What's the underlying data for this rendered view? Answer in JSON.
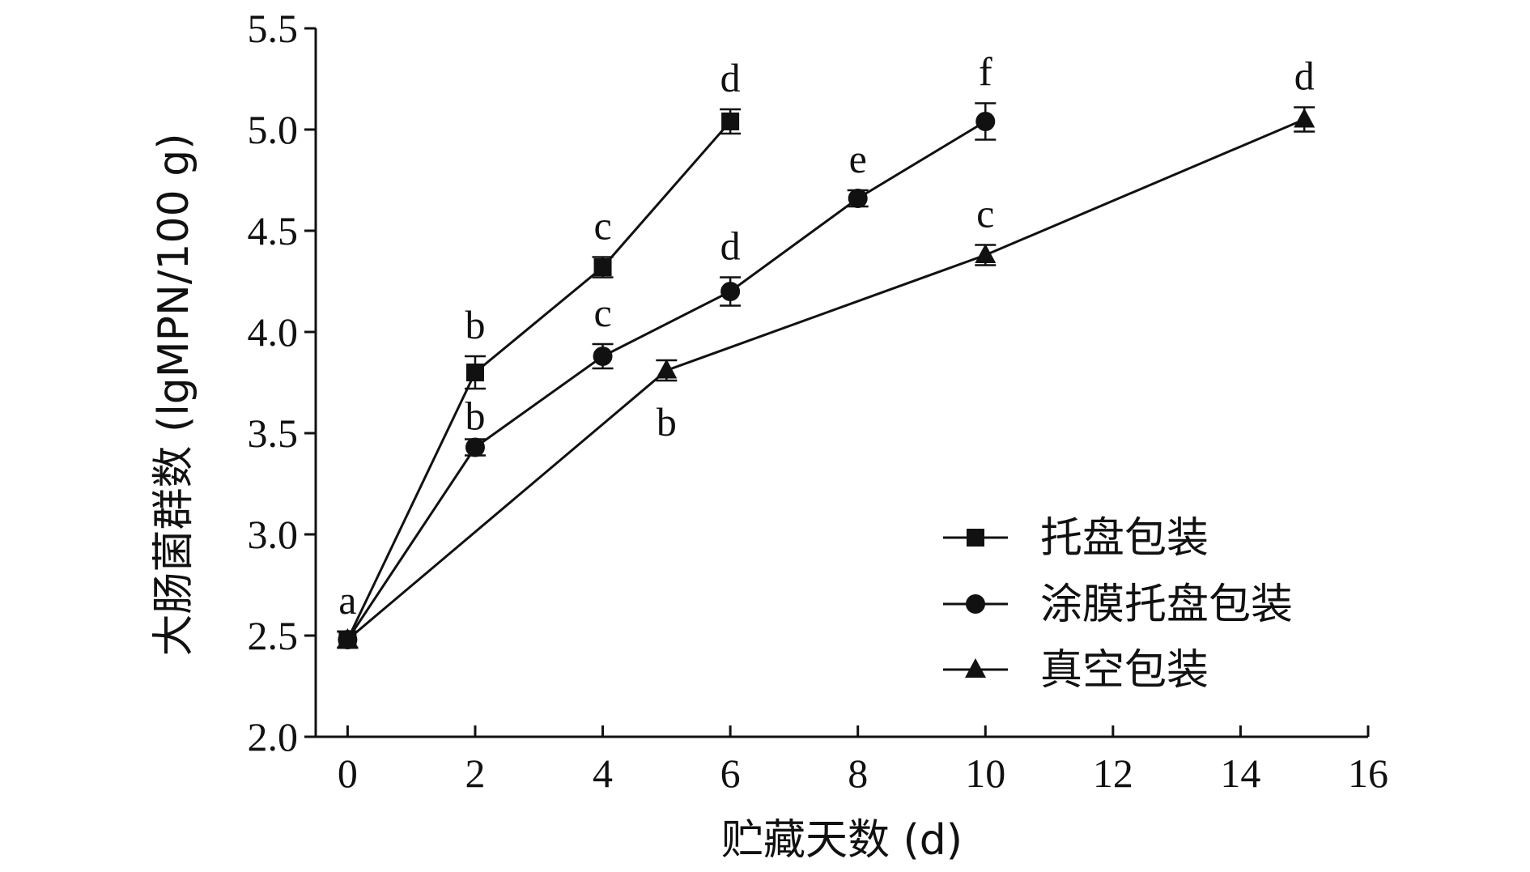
{
  "chart_data": {
    "type": "line",
    "title": "",
    "xlabel": "贮藏天数 (d)",
    "ylabel": "大肠菌群数 (lgMPN/100 g)",
    "xlim": [
      -0.5,
      16
    ],
    "ylim": [
      2.0,
      5.5
    ],
    "xticks": [
      "0",
      "2",
      "4",
      "6",
      "8",
      "10",
      "12",
      "14",
      "16"
    ],
    "yticks": [
      "2.0",
      "2.5",
      "3.0",
      "3.5",
      "4.0",
      "4.5",
      "5.0",
      "5.5"
    ],
    "grid": false,
    "legend_position": "bottom-right",
    "series": [
      {
        "name": "托盘包装",
        "marker": "square",
        "x": [
          0,
          2,
          4,
          6
        ],
        "y": [
          2.48,
          3.8,
          4.32,
          5.04
        ],
        "error": [
          0.04,
          0.08,
          0.05,
          0.06
        ],
        "labels": [
          "a",
          "b",
          "c",
          "d"
        ]
      },
      {
        "name": "涂膜托盘包装",
        "marker": "circle",
        "x": [
          0,
          2,
          4,
          6,
          8,
          10
        ],
        "y": [
          2.48,
          3.43,
          3.88,
          4.2,
          4.66,
          5.04
        ],
        "error": [
          0.04,
          0.04,
          0.06,
          0.07,
          0.04,
          0.09
        ],
        "labels": [
          "",
          "b",
          "c",
          "d",
          "e",
          "f"
        ]
      },
      {
        "name": "真空包装",
        "marker": "triangle",
        "x": [
          0,
          5,
          10,
          15
        ],
        "y": [
          2.48,
          3.81,
          4.38,
          5.05
        ],
        "error": [
          0.04,
          0.05,
          0.05,
          0.06
        ],
        "labels": [
          "",
          "b",
          "c",
          "d"
        ]
      }
    ]
  }
}
